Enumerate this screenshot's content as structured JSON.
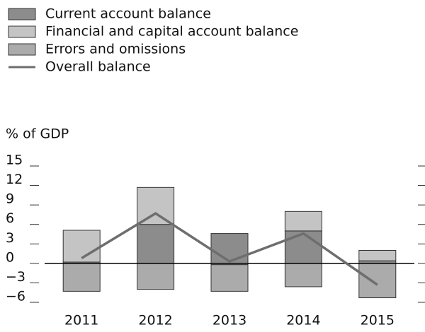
{
  "chart_data": {
    "type": "bar",
    "y_label": "% of GDP",
    "categories": [
      "2011",
      "2012",
      "2013",
      "2014",
      "2015"
    ],
    "series": [
      {
        "name": "Current account balance",
        "color": "#8c8c8c",
        "values": [
          0.2,
          6.0,
          4.6,
          5.0,
          0.4
        ]
      },
      {
        "name": "Financial and capital account balance",
        "color": "#c4c4c4",
        "values": [
          4.9,
          5.7,
          -0.2,
          3.0,
          1.6
        ]
      },
      {
        "name": "Errors and omissions",
        "color": "#ababab",
        "values": [
          -4.3,
          -4.0,
          -4.1,
          -3.6,
          -5.3
        ]
      },
      {
        "name": "Overall balance",
        "type": "line",
        "color": "#6e6e6e",
        "values": [
          0.8,
          7.7,
          0.3,
          4.6,
          -3.3
        ]
      }
    ],
    "ylim": [
      -6,
      15
    ],
    "yticks": [
      {
        "value": -6,
        "label": "−6"
      },
      {
        "value": -3,
        "label": "−3"
      },
      0,
      3,
      6,
      9,
      12,
      15
    ]
  }
}
